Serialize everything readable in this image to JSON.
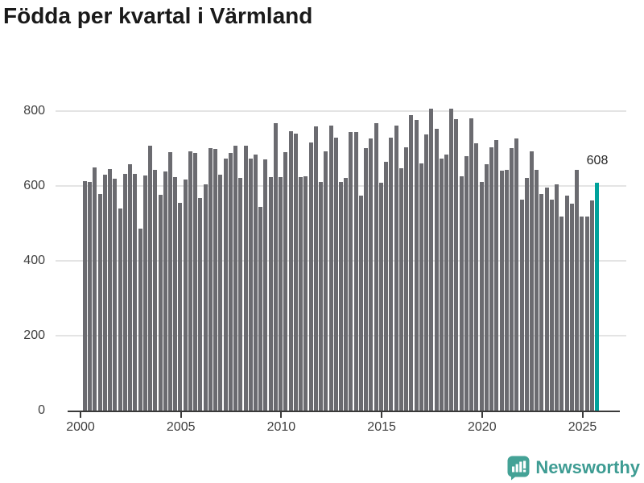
{
  "title": "Födda per kvartal i Värmland",
  "chart_data": {
    "type": "bar",
    "title": "Födda per kvartal i Värmland",
    "x_unit": "quarter",
    "start": "2000 Q1",
    "end": "2025 Q3",
    "categories": [
      "2000 Q1",
      "2000 Q2",
      "2000 Q3",
      "2000 Q4",
      "2001 Q1",
      "2001 Q2",
      "2001 Q3",
      "2001 Q4",
      "2002 Q1",
      "2002 Q2",
      "2002 Q3",
      "2002 Q4",
      "2003 Q1",
      "2003 Q2",
      "2003 Q3",
      "2003 Q4",
      "2004 Q1",
      "2004 Q2",
      "2004 Q3",
      "2004 Q4",
      "2005 Q1",
      "2005 Q2",
      "2005 Q3",
      "2005 Q4",
      "2006 Q1",
      "2006 Q2",
      "2006 Q3",
      "2006 Q4",
      "2007 Q1",
      "2007 Q2",
      "2007 Q3",
      "2007 Q4",
      "2008 Q1",
      "2008 Q2",
      "2008 Q3",
      "2008 Q4",
      "2009 Q1",
      "2009 Q2",
      "2009 Q3",
      "2009 Q4",
      "2010 Q1",
      "2010 Q2",
      "2010 Q3",
      "2010 Q4",
      "2011 Q1",
      "2011 Q2",
      "2011 Q3",
      "2011 Q4",
      "2012 Q1",
      "2012 Q2",
      "2012 Q3",
      "2012 Q4",
      "2013 Q1",
      "2013 Q2",
      "2013 Q3",
      "2013 Q4",
      "2014 Q1",
      "2014 Q2",
      "2014 Q3",
      "2014 Q4",
      "2015 Q1",
      "2015 Q2",
      "2015 Q3",
      "2015 Q4",
      "2016 Q1",
      "2016 Q2",
      "2016 Q3",
      "2016 Q4",
      "2017 Q1",
      "2017 Q2",
      "2017 Q3",
      "2017 Q4",
      "2018 Q1",
      "2018 Q2",
      "2018 Q3",
      "2018 Q4",
      "2019 Q1",
      "2019 Q2",
      "2019 Q3",
      "2019 Q4",
      "2020 Q1",
      "2020 Q2",
      "2020 Q3",
      "2020 Q4",
      "2021 Q1",
      "2021 Q2",
      "2021 Q3",
      "2021 Q4",
      "2022 Q1",
      "2022 Q2",
      "2022 Q3",
      "2022 Q4",
      "2023 Q1",
      "2023 Q2",
      "2023 Q3",
      "2023 Q4",
      "2024 Q1",
      "2024 Q2",
      "2024 Q3",
      "2024 Q4",
      "2025 Q1",
      "2025 Q2",
      "2025 Q3"
    ],
    "values": [
      613,
      611,
      648,
      577,
      630,
      645,
      618,
      539,
      632,
      657,
      632,
      485,
      627,
      706,
      643,
      575,
      638,
      689,
      623,
      555,
      616,
      692,
      687,
      568,
      604,
      700,
      698,
      630,
      673,
      687,
      707,
      621,
      706,
      672,
      684,
      544,
      671,
      623,
      767,
      623,
      689,
      746,
      738,
      623,
      625,
      716,
      759,
      609,
      691,
      760,
      729,
      611,
      621,
      743,
      743,
      573,
      701,
      726,
      767,
      607,
      664,
      729,
      760,
      646,
      702,
      789,
      775,
      659,
      736,
      806,
      752,
      673,
      684,
      805,
      777,
      624,
      678,
      779,
      712,
      609,
      657,
      703,
      722,
      639,
      643,
      700,
      725,
      563,
      621,
      691,
      643,
      578,
      596,
      563,
      604,
      518,
      573,
      551,
      643,
      518,
      517,
      561,
      608
    ],
    "highlight": {
      "index": 102,
      "category": "2025 Q3",
      "value": 608,
      "label": "608"
    },
    "ylim": [
      0,
      800
    ],
    "yticks": [
      0,
      200,
      400,
      600,
      800
    ],
    "xticks": [
      2000,
      2005,
      2010,
      2015,
      2020,
      2025
    ],
    "grid": "horizontal",
    "legend": "none",
    "colors": {
      "bar": "#6b6b70",
      "highlight": "#00a29b",
      "grid": "#e4e4e4",
      "axis": "#3a3a3a",
      "tick_label": "#3f3f3f",
      "annotation": "#262626",
      "title": "#1a1a1a"
    }
  },
  "footer": {
    "brand": "Newsworthy",
    "brand_color": "#3e9c93",
    "logo_icon": "bar-chart-speech-bubble-icon"
  }
}
